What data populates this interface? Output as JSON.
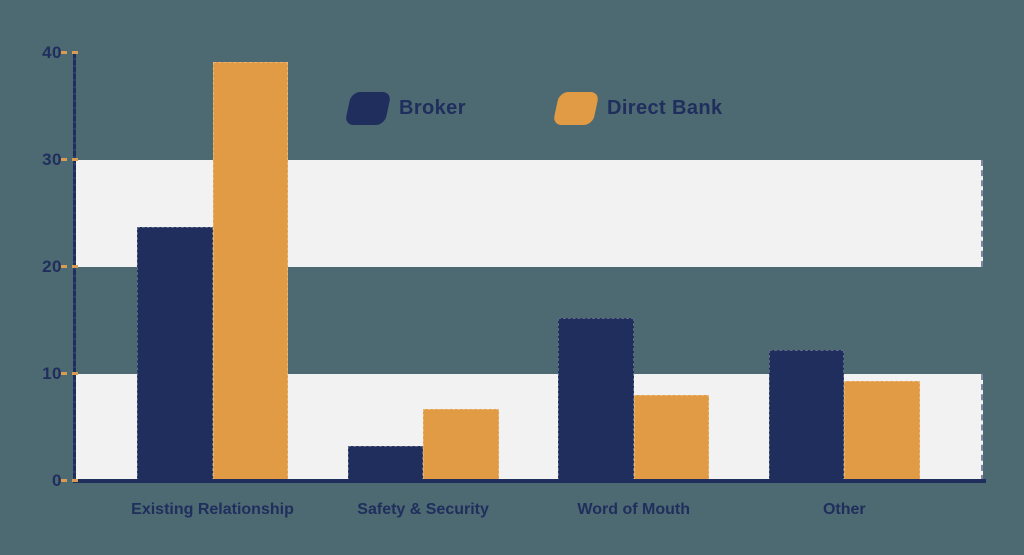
{
  "chart_data": {
    "type": "bar",
    "title": "",
    "categories": [
      "Existing Relationship",
      "Safety & Security",
      "Word of Mouth",
      "Other"
    ],
    "series": [
      {
        "name": "Broker",
        "color": "#1F2E5C",
        "values": [
          23.7,
          3.3,
          15.2,
          12.2
        ]
      },
      {
        "name": "Direct Bank",
        "color": "#E09B44",
        "values": [
          39.2,
          6.7,
          8.0,
          9.3
        ]
      }
    ],
    "y_ticks": [
      0,
      10,
      20,
      30,
      40
    ],
    "ylim": [
      0,
      40
    ],
    "xlabel": "",
    "ylabel": "",
    "grid": "horizontal-bands",
    "bands": [
      [
        0,
        10
      ],
      [
        20,
        30
      ]
    ],
    "legend_position": "top-center"
  },
  "colors": {
    "background": "#4D6972",
    "band": "#F2F2F3",
    "axis": "#1F2E5C",
    "tick_dash": "#D99C52",
    "label": "#1F2E5C",
    "broker": "#1F2E5C",
    "direct_bank": "#E09B44"
  }
}
